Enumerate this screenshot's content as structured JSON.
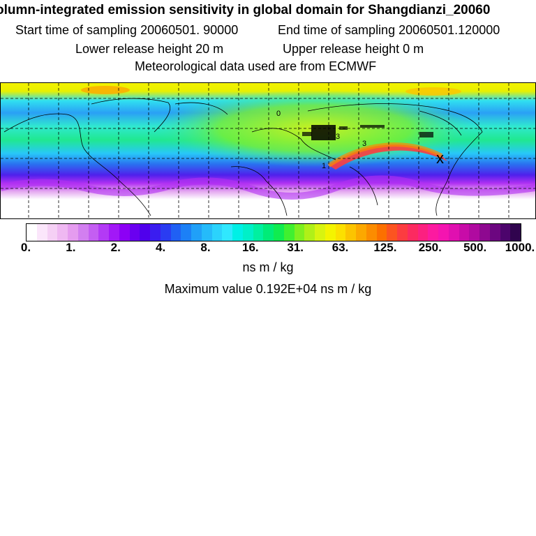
{
  "header": {
    "title": "olumn-integrated emission sensitivity in global domain for Shangdianzi_20060",
    "start_label": "Start time of sampling 20060501. 90000",
    "end_label": "End time of sampling 20060501.120000",
    "lower_label": "Lower release height   20 m",
    "upper_label": "Upper release height    0 m",
    "met_label": "Meteorological data used are from ECMWF"
  },
  "map": {
    "receptor_marker": "x",
    "contour_labels": [
      "0",
      "3",
      "3",
      "1"
    ]
  },
  "colorbar": {
    "tick_labels": [
      "0.",
      "1.",
      "2.",
      "4.",
      "8.",
      "16.",
      "31.",
      "63.",
      "125.",
      "250.",
      "500.",
      "1000."
    ],
    "units": "ns m / kg",
    "colors": [
      "#ffffff",
      "#fbe6fb",
      "#f5d0f5",
      "#efb8f2",
      "#e59cef",
      "#d27ff0",
      "#c45ef2",
      "#b33af5",
      "#a218f7",
      "#8c00f5",
      "#6a00f0",
      "#5000ec",
      "#3a1df0",
      "#2a3cf2",
      "#2060f4",
      "#1c80f6",
      "#20a0f8",
      "#25bbfa",
      "#2bd3fc",
      "#30e8fe",
      "#00f0e6",
      "#00f0c8",
      "#00f0a0",
      "#00ec78",
      "#10ec50",
      "#40f030",
      "#7ef020",
      "#b0f018",
      "#d8f410",
      "#f4f400",
      "#fce000",
      "#fcc400",
      "#fca800",
      "#fc8c00",
      "#fc7000",
      "#fc5420",
      "#fc3c40",
      "#fc2a60",
      "#fc2080",
      "#fc1aa0",
      "#f414b0",
      "#e010b0",
      "#c80ca8",
      "#b00aa0",
      "#8e0890",
      "#6c0680",
      "#4c046c",
      "#30044e"
    ]
  },
  "footer": {
    "max_label": "Maximum value  0.192E+04 ns m / kg"
  }
}
